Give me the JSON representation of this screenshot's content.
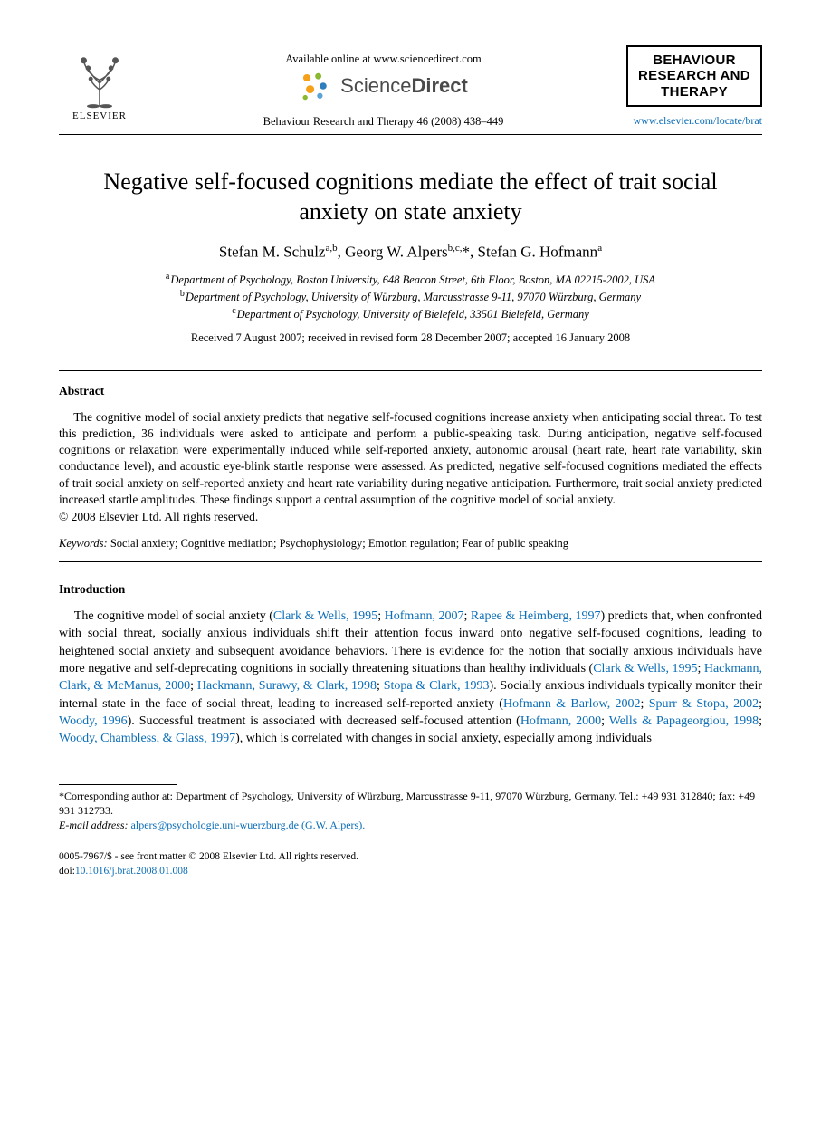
{
  "header": {
    "elsevier_label": "ELSEVIER",
    "available_line": "Available online at www.sciencedirect.com",
    "sd_logo_light": "Science",
    "sd_logo_bold": "Direct",
    "journal_citation": "Behaviour Research and Therapy 46 (2008) 438–449",
    "journal_box_line1": "BEHAVIOUR",
    "journal_box_line2": "RESEARCH AND",
    "journal_box_line3": "THERAPY",
    "journal_url": "www.elsevier.com/locate/brat"
  },
  "title": "Negative self-focused cognitions mediate the effect of trait social anxiety on state anxiety",
  "authors_html": "Stefan M. Schulz<sup>a,b</sup>, Georg W. Alpers<sup>b,c,</sup>*, Stefan G. Hofmann<sup>a</sup>",
  "affiliations": {
    "a": "Department of Psychology, Boston University, 648 Beacon Street, 6th Floor, Boston, MA 02215-2002, USA",
    "b": "Department of Psychology, University of Würzburg, Marcusstrasse 9-11, 97070 Würzburg, Germany",
    "c": "Department of Psychology, University of Bielefeld, 33501 Bielefeld, Germany"
  },
  "dates_line": "Received 7 August 2007; received in revised form 28 December 2007; accepted 16 January 2008",
  "abstract": {
    "head": "Abstract",
    "body": "The cognitive model of social anxiety predicts that negative self-focused cognitions increase anxiety when anticipating social threat. To test this prediction, 36 individuals were asked to anticipate and perform a public-speaking task. During anticipation, negative self-focused cognitions or relaxation were experimentally induced while self-reported anxiety, autonomic arousal (heart rate, heart rate variability, skin conductance level), and acoustic eye-blink startle response were assessed. As predicted, negative self-focused cognitions mediated the effects of trait social anxiety on self-reported anxiety and heart rate variability during negative anticipation. Furthermore, trait social anxiety predicted increased startle amplitudes. These findings support a central assumption of the cognitive model of social anxiety.",
    "copyright": "© 2008 Elsevier Ltd. All rights reserved."
  },
  "keywords": {
    "label": "Keywords:",
    "text": "Social anxiety; Cognitive mediation; Psychophysiology; Emotion regulation; Fear of public speaking"
  },
  "intro": {
    "head": "Introduction",
    "runs": [
      {
        "t": "The cognitive model of social anxiety ("
      },
      {
        "t": "Clark & Wells, 1995",
        "c": true
      },
      {
        "t": "; "
      },
      {
        "t": "Hofmann, 2007",
        "c": true
      },
      {
        "t": "; "
      },
      {
        "t": "Rapee & Heimberg, 1997",
        "c": true
      },
      {
        "t": ") predicts that, when confronted with social threat, socially anxious individuals shift their attention focus inward onto negative self-focused cognitions, leading to heightened social anxiety and subsequent avoidance behaviors. There is evidence for the notion that socially anxious individuals have more negative and self-deprecating cognitions in socially threatening situations than healthy individuals ("
      },
      {
        "t": "Clark & Wells, 1995",
        "c": true
      },
      {
        "t": "; "
      },
      {
        "t": "Hackmann, Clark, & McManus, 2000",
        "c": true
      },
      {
        "t": "; "
      },
      {
        "t": "Hackmann, Surawy, & Clark, 1998",
        "c": true
      },
      {
        "t": "; "
      },
      {
        "t": "Stopa & Clark, 1993",
        "c": true
      },
      {
        "t": "). Socially anxious individuals typically monitor their internal state in the face of social threat, leading to increased self-reported anxiety ("
      },
      {
        "t": "Hofmann & Barlow, 2002",
        "c": true
      },
      {
        "t": "; "
      },
      {
        "t": "Spurr & Stopa, 2002",
        "c": true
      },
      {
        "t": "; "
      },
      {
        "t": "Woody, 1996",
        "c": true
      },
      {
        "t": "). Successful treatment is associated with decreased self-focused attention ("
      },
      {
        "t": "Hofmann, 2000",
        "c": true
      },
      {
        "t": "; "
      },
      {
        "t": "Wells & Papageorgiou, 1998",
        "c": true
      },
      {
        "t": "; "
      },
      {
        "t": "Woody, Chambless, & Glass, 1997",
        "c": true
      },
      {
        "t": "), which is correlated with changes in social anxiety, especially among individuals"
      }
    ]
  },
  "footnotes": {
    "corr": "*Corresponding author at: Department of Psychology, University of Würzburg, Marcusstrasse 9-11, 97070 Würzburg, Germany. Tel.: +49 931 312840; fax: +49 931 312733.",
    "email_label": "E-mail address:",
    "email": "alpers@psychologie.uni-wuerzburg.de (G.W. Alpers)."
  },
  "bottom": {
    "line1": "0005-7967/$ - see front matter © 2008 Elsevier Ltd. All rights reserved.",
    "doi_prefix": "doi:",
    "doi": "10.1016/j.brat.2008.01.008"
  },
  "colors": {
    "link": "#0a6db7",
    "sd_dots": [
      "#f7a11b",
      "#8ab82e",
      "#2f7fbf",
      "#5aa3d6"
    ]
  }
}
